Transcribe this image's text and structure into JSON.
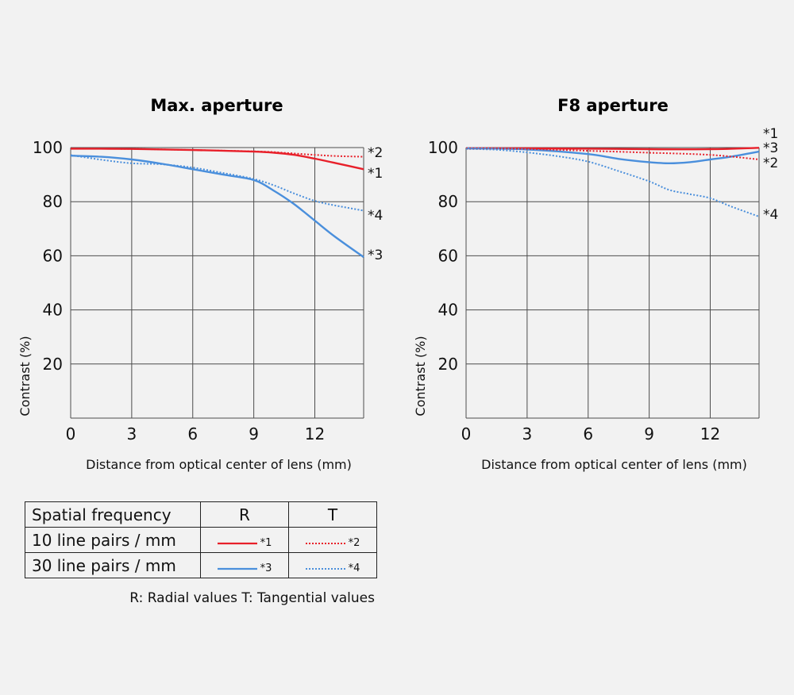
{
  "colors": {
    "red": "#e8202a",
    "blue": "#4a8fdc",
    "grid": "#4d4d4d"
  },
  "chart_data": [
    {
      "type": "line",
      "title": "Max. aperture",
      "xlabel": "Distance from optical center of lens (mm)",
      "ylabel": "Contrast (%)",
      "xlim": [
        0,
        14.4
      ],
      "ylim": [
        0,
        100
      ],
      "xticks": [
        0,
        3,
        6,
        9,
        12
      ],
      "yticks": [
        20,
        40,
        60,
        80,
        100
      ],
      "grid": true,
      "series": [
        {
          "name": "*1",
          "color": "#e8202a",
          "style": "solid",
          "x": [
            0,
            3,
            6,
            9,
            10,
            11,
            12,
            13,
            14.4
          ],
          "y": [
            99.6,
            99.5,
            99.1,
            98.5,
            98.1,
            97.3,
            95.9,
            94.3,
            92
          ]
        },
        {
          "name": "*2",
          "color": "#e8202a",
          "style": "dotted",
          "x": [
            0,
            3,
            6,
            9,
            10,
            11,
            12,
            13,
            14.4
          ],
          "y": [
            99.6,
            99.5,
            99.1,
            98.6,
            98.3,
            97.8,
            97.3,
            96.9,
            96.6
          ]
        },
        {
          "name": "*3",
          "color": "#4a8fdc",
          "style": "solid",
          "x": [
            0,
            1.5,
            3,
            4.5,
            6,
            7.5,
            9,
            10,
            11,
            12,
            13,
            14.4
          ],
          "y": [
            97,
            96.6,
            95.6,
            94,
            92,
            90,
            88,
            84,
            79,
            73,
            67,
            59.5
          ]
        },
        {
          "name": "*4",
          "color": "#4a8fdc",
          "style": "dotted",
          "x": [
            0,
            1.5,
            3,
            4.5,
            6,
            7.5,
            9,
            10,
            11,
            12,
            13,
            14.4
          ],
          "y": [
            97.2,
            95.5,
            94.2,
            93.8,
            92.6,
            90.6,
            88.4,
            86,
            83,
            80.3,
            78.6,
            76.7
          ]
        }
      ]
    },
    {
      "type": "line",
      "title": "F8 aperture",
      "xlabel": "Distance from optical center of lens (mm)",
      "ylabel": "Contrast (%)",
      "xlim": [
        0,
        14.4
      ],
      "ylim": [
        0,
        100
      ],
      "xticks": [
        0,
        3,
        6,
        9,
        12
      ],
      "yticks": [
        20,
        40,
        60,
        80,
        100
      ],
      "grid": true,
      "series": [
        {
          "name": "*1",
          "color": "#e8202a",
          "style": "solid",
          "x": [
            0,
            3,
            6,
            9,
            12,
            14.4
          ],
          "y": [
            99.7,
            99.7,
            99.6,
            99.4,
            99.4,
            99.9
          ]
        },
        {
          "name": "*3",
          "color": "#4a8fdc",
          "style": "solid",
          "x": [
            0,
            3,
            6,
            7.5,
            9,
            10,
            11,
            12,
            13,
            14.4
          ],
          "y": [
            99.8,
            99.3,
            97.6,
            95.8,
            94.6,
            94.2,
            94.6,
            95.6,
            96.6,
            98.5
          ]
        },
        {
          "name": "*2",
          "color": "#e8202a",
          "style": "dotted",
          "x": [
            0,
            3,
            6,
            9,
            12,
            14.4
          ],
          "y": [
            99.8,
            99.5,
            98.8,
            98.1,
            97.3,
            95.6
          ]
        },
        {
          "name": "*4",
          "color": "#4a8fdc",
          "style": "dotted",
          "x": [
            0,
            1.5,
            3,
            4.5,
            6,
            7.5,
            9,
            10,
            11,
            12,
            13,
            14.4
          ],
          "y": [
            99.5,
            99.2,
            98.2,
            96.8,
            94.8,
            91.3,
            87.5,
            84.3,
            82.8,
            81.3,
            78.3,
            74.5
          ]
        }
      ]
    }
  ],
  "legend": {
    "header": [
      "Spatial frequency",
      "R",
      "T"
    ],
    "rows": [
      {
        "label": "10 line pairs / mm",
        "r_ref": "*1",
        "t_ref": "*2",
        "color": "#e8202a"
      },
      {
        "label": "30 line pairs / mm",
        "r_ref": "*3",
        "t_ref": "*4",
        "color": "#4a8fdc"
      }
    ],
    "footnote": "R: Radial values  T: Tangential values"
  }
}
